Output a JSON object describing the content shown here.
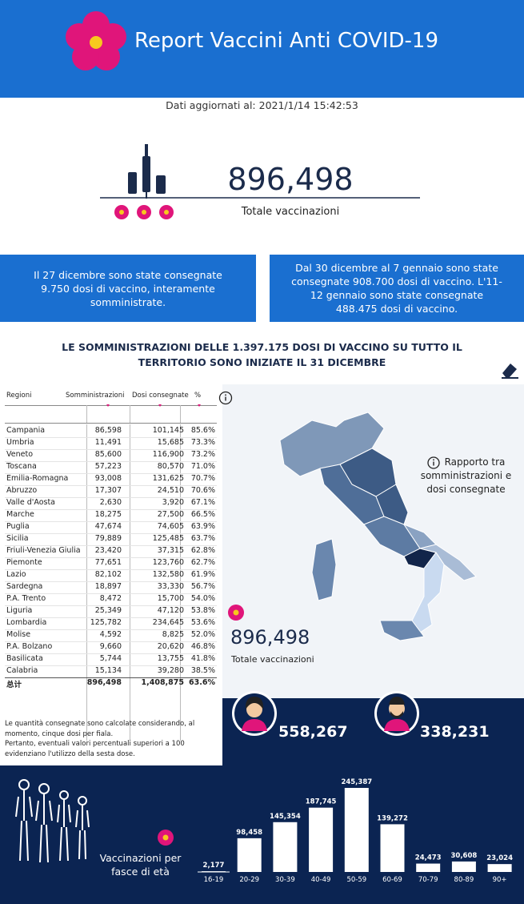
{
  "header": {
    "title": "Report Vaccini Anti COVID-19"
  },
  "updated": "Dati aggiornati al: 2021/1/14 15:42:53",
  "total": {
    "value": "896,498",
    "label": "Totale vaccinazioni"
  },
  "notes": [
    "Il 27 dicembre sono state consegnate 9.750 dosi di vaccino, interamente somministrate.",
    "Dal 30 dicembre al 7 gennaio sono state consegnate 908.700 dosi di vaccino. L'11-12 gennaio sono state consegnate 488.475 dosi di vaccino."
  ],
  "headline": "LE SOMMINISTRAZIONI DELLE 1.397.175 DOSI DI VACCINO SU TUTTO IL TERRITORIO SONO INIZIATE IL 31 DICEMBRE",
  "table": {
    "columns": [
      "Regioni",
      "Somministrazioni",
      "Dosi consegnate",
      "%"
    ],
    "rows": [
      [
        "Campania",
        "86,598",
        "101,145",
        "85.6%"
      ],
      [
        "Umbria",
        "11,491",
        "15,685",
        "73.3%"
      ],
      [
        "Veneto",
        "85,600",
        "116,900",
        "73.2%"
      ],
      [
        "Toscana",
        "57,223",
        "80,570",
        "71.0%"
      ],
      [
        "Emilia-Romagna",
        "93,008",
        "131,625",
        "70.7%"
      ],
      [
        "Abruzzo",
        "17,307",
        "24,510",
        "70.6%"
      ],
      [
        "Valle d'Aosta",
        "2,630",
        "3,920",
        "67.1%"
      ],
      [
        "Marche",
        "18,275",
        "27,500",
        "66.5%"
      ],
      [
        "Puglia",
        "47,674",
        "74,605",
        "63.9%"
      ],
      [
        "Sicilia",
        "79,889",
        "125,485",
        "63.7%"
      ],
      [
        "Friuli-Venezia Giulia",
        "23,420",
        "37,315",
        "62.8%"
      ],
      [
        "Piemonte",
        "77,651",
        "123,760",
        "62.7%"
      ],
      [
        "Lazio",
        "82,102",
        "132,580",
        "61.9%"
      ],
      [
        "Sardegna",
        "18,897",
        "33,330",
        "56.7%"
      ],
      [
        "P.A. Trento",
        "8,472",
        "15,700",
        "54.0%"
      ],
      [
        "Liguria",
        "25,349",
        "47,120",
        "53.8%"
      ],
      [
        "Lombardia",
        "125,782",
        "234,645",
        "53.6%"
      ],
      [
        "Molise",
        "4,592",
        "8,825",
        "52.0%"
      ],
      [
        "P.A. Bolzano",
        "9,660",
        "20,620",
        "46.8%"
      ],
      [
        "Basilicata",
        "5,744",
        "13,755",
        "41.8%"
      ],
      [
        "Calabria",
        "15,134",
        "39,280",
        "38.5%"
      ]
    ],
    "total": [
      "总计",
      "896,498",
      "1,408,875",
      "63.6%"
    ]
  },
  "map": {
    "legend": "Rapporto tra somministrazioni e dosi consegnate",
    "total": "896,498",
    "total_label": "Totale vaccinazioni"
  },
  "footnote": [
    "Le quantità consegnate sono calcolate considerando, al momento, cinque dosi per fiala.",
    "Pertanto, eventuali valori percentuali superiori a 100 evidenziano l'utilizzo della sesta dose."
  ],
  "gender": {
    "female": "558,267",
    "male": "338,231"
  },
  "chart_data": {
    "type": "bar",
    "title": "Vaccinazioni per fasce di età",
    "categories": [
      "16-19",
      "20-29",
      "30-39",
      "40-49",
      "50-59",
      "60-69",
      "70-79",
      "80-89",
      "90+"
    ],
    "values": [
      2177,
      98458,
      145354,
      187745,
      245387,
      139272,
      24473,
      30608,
      23024
    ],
    "value_labels": [
      "2,177",
      "98,458",
      "145,354",
      "187,745",
      "245,387",
      "139,272",
      "24,473",
      "30,608",
      "23,024"
    ],
    "color": "#ffffff"
  }
}
